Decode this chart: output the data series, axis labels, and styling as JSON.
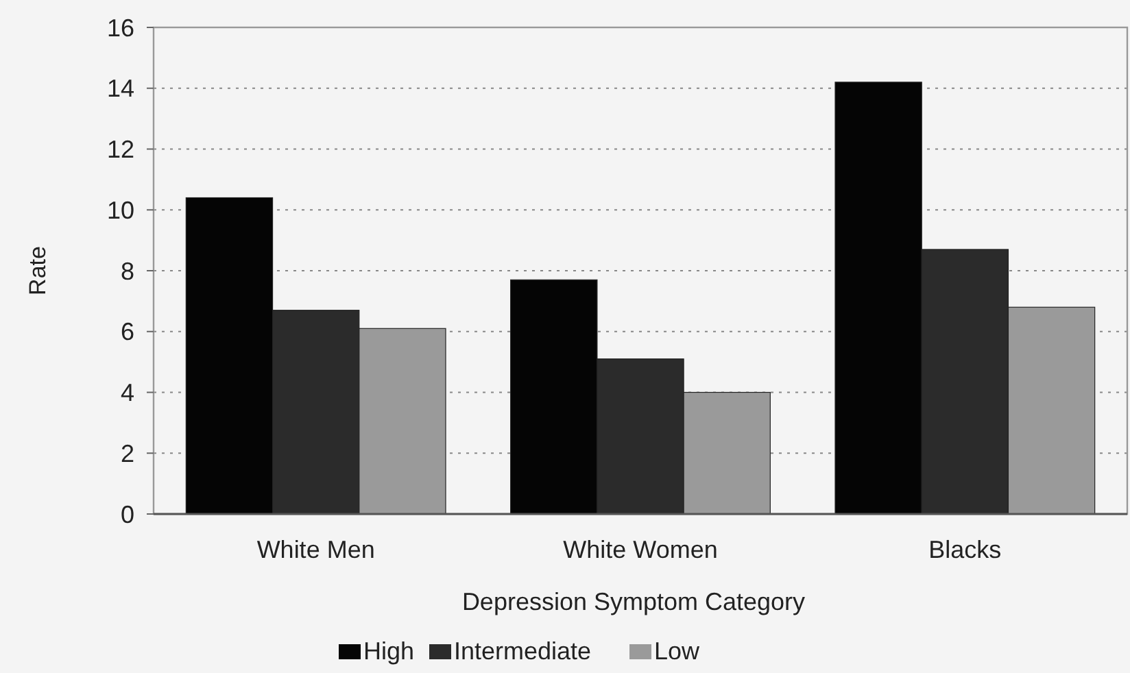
{
  "chart_data": {
    "type": "bar",
    "xlabel": "Depression Symptom Category",
    "ylabel": "Rate",
    "categories": [
      "White Men",
      "White Women",
      "Blacks"
    ],
    "series": [
      {
        "name": "High",
        "color": "#050505",
        "values": [
          10.4,
          7.7,
          14.2
        ]
      },
      {
        "name": "Intermediate",
        "color": "#2b2b2b",
        "values": [
          6.7,
          5.1,
          8.7
        ]
      },
      {
        "name": "Low",
        "color": "#9a9a9a",
        "values": [
          6.1,
          4.0,
          6.8
        ]
      }
    ],
    "ylim": [
      0,
      16
    ],
    "yticks": [
      0,
      2,
      4,
      6,
      8,
      10,
      12,
      14,
      16
    ],
    "grid": "y",
    "legend": "bottom"
  }
}
